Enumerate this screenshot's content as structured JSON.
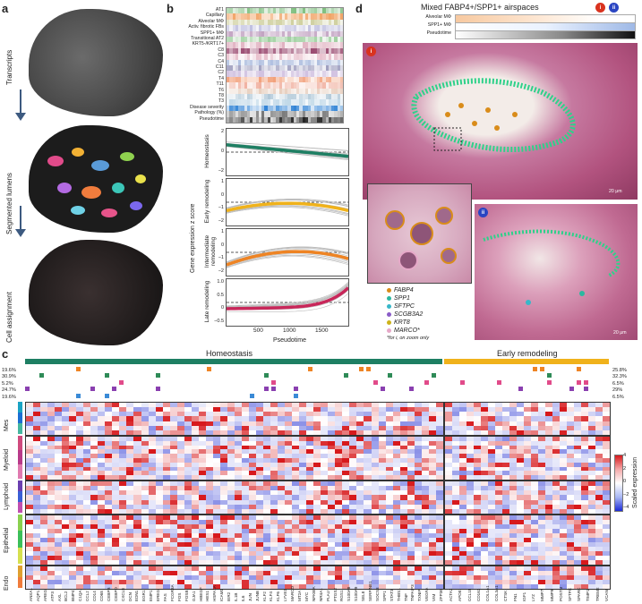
{
  "panels": {
    "a": {
      "letter": "a",
      "row_labels": [
        "Transcripts",
        "Segmented lumens",
        "Cell assignment"
      ]
    },
    "b": {
      "letter": "b",
      "heatmap_rows": [
        "AT1",
        "Capillary",
        "Alveolar MΦ",
        "Activ. fibrotic FBs",
        "SPP1+ MΦ",
        "Transitional AT2",
        "KRT5-/KRT17+",
        "C8",
        "C3",
        "C4",
        "C11",
        "C2",
        "T4",
        "T11",
        "T6",
        "T8",
        "T3",
        "Disease severity",
        "Pathology (%)",
        "Pseudotime"
      ],
      "ylabel": "Gene expression z score",
      "xlabel": "Pseudotime",
      "x_ticks": [
        "500",
        "1000",
        "1500"
      ],
      "subplots": [
        {
          "label": "Homeostasis",
          "ticks": [
            "2",
            "0",
            "−2"
          ]
        },
        {
          "label": "Early remodeling",
          "ticks": [
            "1",
            "0",
            "−1",
            "−2"
          ]
        },
        {
          "label": "Intermediate remodeling",
          "ticks": [
            "1",
            "0",
            "−1",
            "−2"
          ]
        },
        {
          "label": "Late remodeling",
          "ticks": [
            "1.0",
            "0.5",
            "0",
            "−0.5"
          ]
        }
      ]
    },
    "c": {
      "letter": "c",
      "group_labels": [
        "Homeostasis",
        "Early remodeling"
      ],
      "left_pcts": [
        "19.6%",
        "30.9%",
        "5.2%",
        "24.7%",
        "19.6%"
      ],
      "right_pcts": [
        "25.8%",
        "32.3%",
        "6.5%",
        "29%",
        "6.5%"
      ],
      "row_groups": [
        "Mes",
        "Myeloid",
        "Lymphoid",
        "Epithelial",
        "Endo"
      ],
      "colorbar_label": "Scaled expression",
      "colorbar_ticks": [
        "4",
        "2",
        "0",
        "−2",
        "−4"
      ],
      "genes_left": [
        "ANXA1",
        "AQP1",
        "AREG",
        "ATF3",
        "AXL",
        "BCL2",
        "BMP4",
        "C1QA",
        "CCL2",
        "CD14",
        "CD68",
        "CEBPB",
        "CEBPD",
        "CXCL8",
        "DCN",
        "EDN1",
        "EGR1",
        "EMP1",
        "EREG",
        "FAS",
        "FCGR3A",
        "FOS",
        "FOSB",
        "GJA1",
        "HBEGF",
        "HES1",
        "HSPA1A",
        "ICAM1",
        "IER2",
        "IL1B",
        "IL6",
        "JUN",
        "JUNB",
        "KLF2",
        "KLF4",
        "KLF6",
        "LYVE1",
        "MARCO",
        "MT2A",
        "MYC",
        "NFKBIA",
        "NR4A1",
        "PLAU",
        "PTGS2",
        "RGS1",
        "S100A8",
        "S100A9",
        "SELE",
        "SERPINE1",
        "SOCS3",
        "SPP1",
        "STAT3",
        "THBS1",
        "TNF",
        "TNFAIP3",
        "TXNIP",
        "VEGFA",
        "VIM",
        "ZFP36"
      ],
      "genes_right": [
        "ACTA2",
        "APOE",
        "CCL18",
        "CD163",
        "COL1A1",
        "COL3A1",
        "CTSK",
        "FN1",
        "IGF1",
        "LYZ",
        "MMP7",
        "MMP9",
        "POSTN",
        "SFTPC",
        "SPARC",
        "TIMP1",
        "TREM2",
        "VCAN"
      ]
    },
    "d": {
      "letter": "d",
      "title": "Mixed FABP4+/SPP1+ airspaces",
      "track_labels": [
        "Alveolar MΦ",
        "SPP1+ MΦ",
        "Pseudotime"
      ],
      "badges": [
        "i",
        "ii"
      ],
      "scale_labels": [
        "20 μm",
        "20 μm"
      ],
      "legend": [
        {
          "name": "FABP4",
          "color": "#d98c1a"
        },
        {
          "name": "SPP1",
          "color": "#2bb8a0"
        },
        {
          "name": "SFTPC",
          "color": "#38b7c9"
        },
        {
          "name": "SCGB3A2",
          "color": "#8a5cc7"
        },
        {
          "name": "KRT8",
          "color": "#cdb31a"
        },
        {
          "name": "MARCO*",
          "color": "#e6a8c8"
        }
      ],
      "legend_note": "*for i, on zoom only"
    }
  },
  "colors": {
    "homeostasis": "#1e7f63",
    "early": "#f0b21b",
    "intermediate": "#ee8424",
    "late": "#c8275a",
    "he_pink": "#d99bb8",
    "spp1_green": "#2fd18a"
  }
}
